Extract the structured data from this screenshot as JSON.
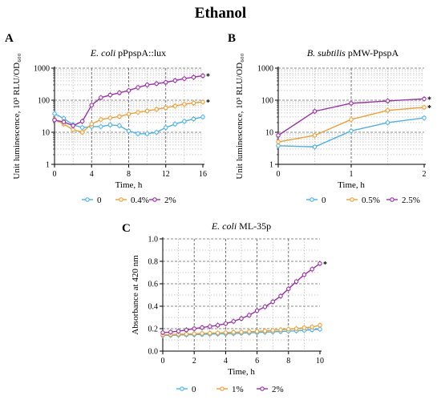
{
  "figure": {
    "title": "Ethanol"
  },
  "chart_data": [
    {
      "type": "line",
      "panel_label": "A",
      "title_italic": "E. coli",
      "title_rest": " pPpspA::lux",
      "xlabel": "Time, h",
      "ylabel": "Unit luminescence, 10³ RLU/OD₆₀₀",
      "yscale": "log",
      "xlim": [
        0,
        16
      ],
      "ylim": [
        1,
        1000
      ],
      "xticks": [
        0,
        4,
        8,
        12,
        16
      ],
      "yticks": [
        1,
        10,
        100,
        1000
      ],
      "grid": "dashed",
      "legend_position": "bottom",
      "series": [
        {
          "name": "0",
          "color": "#4bb3e6",
          "marker": "circle",
          "x": [
            0,
            1,
            2,
            3,
            4,
            5,
            6,
            7,
            8,
            9,
            10,
            11,
            12,
            13,
            14,
            15,
            16
          ],
          "y": [
            38,
            27,
            17,
            14,
            15,
            15,
            17,
            16,
            11,
            9,
            9,
            10,
            14,
            18,
            22,
            26,
            30
          ]
        },
        {
          "name": "0.4%",
          "color": "#f0a030",
          "marker": "circle",
          "x": [
            0,
            1,
            2,
            3,
            4,
            5,
            6,
            7,
            8,
            9,
            10,
            11,
            12,
            13,
            14,
            15,
            16
          ],
          "y": [
            25,
            18,
            12,
            10,
            18,
            25,
            28,
            31,
            37,
            42,
            46,
            52,
            58,
            66,
            75,
            82,
            88
          ]
        },
        {
          "name": "2%",
          "color": "#9b30a8",
          "marker": "circle",
          "x": [
            0,
            1,
            2,
            3,
            4,
            5,
            6,
            7,
            8,
            9,
            10,
            11,
            12,
            13,
            14,
            15,
            16
          ],
          "y": [
            24,
            21,
            16,
            22,
            70,
            120,
            145,
            170,
            200,
            250,
            300,
            330,
            360,
            410,
            470,
            520,
            580
          ]
        }
      ],
      "annotations": [
        "*",
        "*"
      ]
    },
    {
      "type": "line",
      "panel_label": "B",
      "title_italic": "B. subtilis",
      "title_rest": " pMW-PpspA",
      "xlabel": "Time, h",
      "ylabel": "Unit luminescence, 10³ RLU/OD₆₀₀",
      "yscale": "log",
      "xlim": [
        0,
        2
      ],
      "ylim": [
        1,
        1000
      ],
      "xticks": [
        0,
        1,
        2
      ],
      "yticks": [
        1,
        10,
        100,
        1000
      ],
      "grid": "dashed",
      "legend_position": "bottom",
      "series": [
        {
          "name": "0",
          "color": "#4bb3e6",
          "marker": "circle",
          "x": [
            0,
            0.5,
            1,
            1.5,
            2
          ],
          "y": [
            3.8,
            3.5,
            11,
            20,
            28
          ]
        },
        {
          "name": "0.5%",
          "color": "#f0a030",
          "marker": "circle",
          "x": [
            0,
            0.5,
            1,
            1.5,
            2
          ],
          "y": [
            5,
            8,
            25,
            48,
            60
          ]
        },
        {
          "name": "2.5%",
          "color": "#9b30a8",
          "marker": "circle",
          "x": [
            0,
            0.5,
            1,
            1.5,
            2
          ],
          "y": [
            8,
            45,
            80,
            95,
            110
          ]
        }
      ],
      "annotations": [
        "*",
        "*"
      ]
    },
    {
      "type": "line",
      "panel_label": "C",
      "title_italic": "E. coli",
      "title_rest": " ML-35p",
      "xlabel": "Time, h",
      "ylabel": "Absorbance at 420 nm",
      "yscale": "linear",
      "xlim": [
        0,
        10
      ],
      "ylim": [
        0,
        1.0
      ],
      "xticks": [
        0,
        2,
        4,
        6,
        8,
        10
      ],
      "yticks": [
        0.0,
        0.2,
        0.4,
        0.6,
        0.8,
        1.0
      ],
      "ytick_labels": [
        "0.0",
        "0.2",
        "0.4",
        "0.6",
        "0.8",
        "1.0"
      ],
      "grid": "dashed",
      "legend_position": "bottom",
      "series": [
        {
          "name": "0",
          "color": "#4bb3e6",
          "marker": "circle",
          "x": [
            0,
            0.5,
            1,
            1.5,
            2,
            2.5,
            3,
            3.5,
            4,
            4.5,
            5,
            5.5,
            6,
            6.5,
            7,
            7.5,
            8,
            8.5,
            9,
            9.5,
            10
          ],
          "y": [
            0.14,
            0.141,
            0.143,
            0.145,
            0.147,
            0.149,
            0.151,
            0.153,
            0.155,
            0.157,
            0.16,
            0.163,
            0.166,
            0.169,
            0.172,
            0.175,
            0.178,
            0.181,
            0.185,
            0.19,
            0.195
          ]
        },
        {
          "name": "1%",
          "color": "#f0a030",
          "marker": "circle",
          "x": [
            0,
            0.5,
            1,
            1.5,
            2,
            2.5,
            3,
            3.5,
            4,
            4.5,
            5,
            5.5,
            6,
            6.5,
            7,
            7.5,
            8,
            8.5,
            9,
            9.5,
            10
          ],
          "y": [
            0.145,
            0.147,
            0.15,
            0.152,
            0.155,
            0.158,
            0.16,
            0.162,
            0.165,
            0.168,
            0.17,
            0.173,
            0.176,
            0.18,
            0.185,
            0.19,
            0.195,
            0.2,
            0.208,
            0.215,
            0.23
          ]
        },
        {
          "name": "2%",
          "color": "#9b30a8",
          "marker": "circle",
          "x": [
            0,
            0.5,
            1,
            1.5,
            2,
            2.5,
            3,
            3.5,
            4,
            4.5,
            5,
            5.5,
            6,
            6.5,
            7,
            7.5,
            8,
            8.5,
            9,
            9.5,
            10
          ],
          "y": [
            0.165,
            0.17,
            0.178,
            0.188,
            0.2,
            0.21,
            0.22,
            0.23,
            0.245,
            0.265,
            0.29,
            0.32,
            0.36,
            0.395,
            0.44,
            0.49,
            0.555,
            0.62,
            0.68,
            0.73,
            0.78
          ]
        }
      ],
      "annotations": [
        "*"
      ]
    }
  ]
}
